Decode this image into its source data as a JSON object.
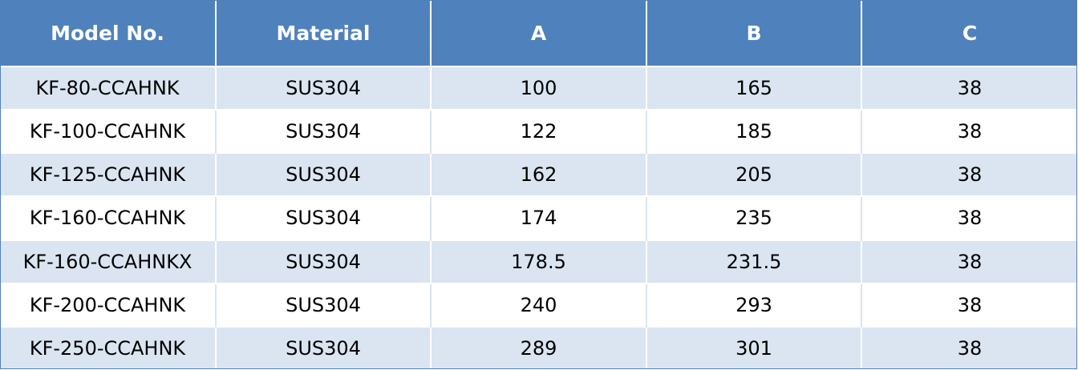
{
  "table": {
    "headers": [
      "Model No.",
      "Material",
      "A",
      "B",
      "C"
    ],
    "rows": [
      [
        "KF-80-CCAHNK",
        "SUS304",
        "100",
        "165",
        "38"
      ],
      [
        "KF-100-CCAHNK",
        "SUS304",
        "122",
        "185",
        "38"
      ],
      [
        "KF-125-CCAHNK",
        "SUS304",
        "162",
        "205",
        "38"
      ],
      [
        "KF-160-CCAHNK",
        "SUS304",
        "174",
        "235",
        "38"
      ],
      [
        "KF-160-CCAHNKX",
        "SUS304",
        "178.5",
        "231.5",
        "38"
      ],
      [
        "KF-200-CCAHNK",
        "SUS304",
        "240",
        "293",
        "38"
      ],
      [
        "KF-250-CCAHNK",
        "SUS304",
        "289",
        "301",
        "38"
      ]
    ],
    "colors": {
      "header_bg": "#4f81bd",
      "header_text": "#ffffff",
      "band_row": "#dbe5f1",
      "plain_row": "#ffffff"
    }
  }
}
